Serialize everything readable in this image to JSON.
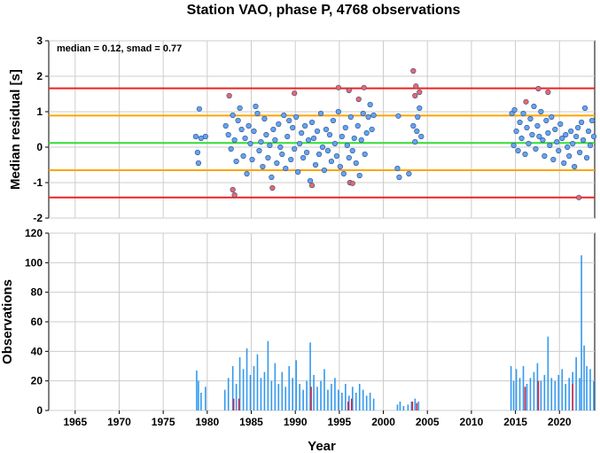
{
  "chart_data": [
    {
      "type": "scatter",
      "title": "Station VAO, phase P, 4768 observations",
      "ylabel": "Median residual [s]",
      "annotation": "median = 0.12, smad = 0.77",
      "xlim": [
        1962,
        2024
      ],
      "ylim": [
        -2,
        3
      ],
      "yticks": [
        "-2",
        "-1",
        "0",
        "1",
        "2",
        "3"
      ],
      "grid": true,
      "reference_lines": [
        {
          "y": 0.12,
          "color": "#33dd33"
        },
        {
          "y": 0.89,
          "color": "#ffa500"
        },
        {
          "y": -0.65,
          "color": "#ffa500"
        },
        {
          "y": 1.66,
          "color": "#ee2222"
        },
        {
          "y": -1.42,
          "color": "#ee2222"
        }
      ],
      "series": [
        {
          "color": "#66a3ee",
          "points": [
            [
              1978.7,
              0.3
            ],
            [
              1978.9,
              -0.15
            ],
            [
              1979.0,
              -0.45
            ],
            [
              1979.1,
              1.08
            ],
            [
              1979.3,
              0.25
            ],
            [
              1979.8,
              0.3
            ],
            [
              1982.1,
              0.6
            ],
            [
              1982.4,
              0.35
            ],
            [
              1982.7,
              -0.05
            ],
            [
              1982.9,
              0.9
            ],
            [
              1983.1,
              0.2
            ],
            [
              1983.3,
              -0.4
            ],
            [
              1983.5,
              0.75
            ],
            [
              1983.7,
              1.1
            ],
            [
              1983.9,
              0.5
            ],
            [
              1984.1,
              -0.25
            ],
            [
              1984.3,
              0.25
            ],
            [
              1984.5,
              -0.75
            ],
            [
              1984.7,
              0.6
            ],
            [
              1984.9,
              0.1
            ],
            [
              1985.1,
              -0.35
            ],
            [
              1985.3,
              0.45
            ],
            [
              1985.5,
              1.15
            ],
            [
              1985.7,
              0.95
            ],
            [
              1985.9,
              -0.1
            ],
            [
              1986.1,
              0.15
            ],
            [
              1986.3,
              -0.55
            ],
            [
              1986.5,
              0.8
            ],
            [
              1986.7,
              0.35
            ],
            [
              1986.9,
              -0.3
            ],
            [
              1987.1,
              0.05
            ],
            [
              1987.3,
              -0.85
            ],
            [
              1987.5,
              0.5
            ],
            [
              1987.7,
              0.2
            ],
            [
              1987.9,
              -0.45
            ],
            [
              1988.1,
              0.65
            ],
            [
              1988.3,
              0.0
            ],
            [
              1988.5,
              -0.2
            ],
            [
              1988.7,
              0.9
            ],
            [
              1988.9,
              -0.6
            ],
            [
              1989.1,
              0.3
            ],
            [
              1989.3,
              0.75
            ],
            [
              1989.5,
              -0.35
            ],
            [
              1989.7,
              0.55
            ],
            [
              1989.9,
              -0.05
            ],
            [
              1990.1,
              0.85
            ],
            [
              1990.3,
              -0.7
            ],
            [
              1990.5,
              0.1
            ],
            [
              1990.7,
              0.4
            ],
            [
              1990.9,
              -0.3
            ],
            [
              1991.1,
              0.6
            ],
            [
              1991.3,
              -0.15
            ],
            [
              1991.5,
              0.2
            ],
            [
              1991.7,
              -0.95
            ],
            [
              1991.9,
              0.7
            ],
            [
              1992.1,
              0.25
            ],
            [
              1992.3,
              -0.5
            ],
            [
              1992.5,
              0.45
            ],
            [
              1992.7,
              -0.2
            ],
            [
              1992.9,
              0.95
            ],
            [
              1993.1,
              0.0
            ],
            [
              1993.3,
              -0.65
            ],
            [
              1993.5,
              0.5
            ],
            [
              1993.7,
              -0.1
            ],
            [
              1993.9,
              0.35
            ],
            [
              1994.1,
              -0.4
            ],
            [
              1994.3,
              0.75
            ],
            [
              1994.5,
              0.1
            ],
            [
              1994.7,
              -0.25
            ],
            [
              1994.9,
              1.0
            ],
            [
              1995.1,
              -0.55
            ],
            [
              1995.3,
              0.3
            ],
            [
              1995.5,
              -0.75
            ],
            [
              1995.7,
              0.55
            ],
            [
              1995.9,
              0.05
            ],
            [
              1996.1,
              -0.3
            ],
            [
              1996.3,
              0.85
            ],
            [
              1996.5,
              -0.1
            ],
            [
              1996.7,
              0.25
            ],
            [
              1996.9,
              -0.45
            ],
            [
              1997.1,
              0.6
            ],
            [
              1997.3,
              -0.8
            ],
            [
              1997.5,
              0.2
            ],
            [
              1997.7,
              0.95
            ],
            [
              1997.9,
              -0.2
            ],
            [
              1998.1,
              0.4
            ],
            [
              1998.3,
              0.85
            ],
            [
              1998.5,
              1.2
            ],
            [
              1998.7,
              0.5
            ],
            [
              1998.9,
              0.9
            ],
            [
              2001.6,
              -0.6
            ],
            [
              2001.7,
              0.88
            ],
            [
              2001.8,
              -0.85
            ],
            [
              2002.9,
              -0.75
            ],
            [
              2003.4,
              0.6
            ],
            [
              2003.6,
              0.15
            ],
            [
              2003.8,
              0.45
            ],
            [
              2003.9,
              0.85
            ],
            [
              2004.1,
              1.1
            ],
            [
              2004.3,
              0.3
            ],
            [
              2014.6,
              0.95
            ],
            [
              2014.8,
              0.05
            ],
            [
              2014.9,
              1.05
            ],
            [
              2015.1,
              0.45
            ],
            [
              2015.3,
              -0.1
            ],
            [
              2015.5,
              0.7
            ],
            [
              2015.7,
              0.25
            ],
            [
              2015.9,
              0.95
            ],
            [
              2016.1,
              -0.2
            ],
            [
              2016.3,
              0.55
            ],
            [
              2016.5,
              0.1
            ],
            [
              2016.7,
              0.8
            ],
            [
              2016.9,
              0.35
            ],
            [
              2017.1,
              1.15
            ],
            [
              2017.3,
              -0.05
            ],
            [
              2017.5,
              0.6
            ],
            [
              2017.7,
              0.3
            ],
            [
              2017.9,
              1.0
            ],
            [
              2018.1,
              0.2
            ],
            [
              2018.3,
              -0.25
            ],
            [
              2018.5,
              0.75
            ],
            [
              2018.7,
              0.4
            ],
            [
              2018.9,
              0.05
            ],
            [
              2019.1,
              0.85
            ],
            [
              2019.3,
              -0.35
            ],
            [
              2019.5,
              0.5
            ],
            [
              2019.7,
              0.15
            ],
            [
              2019.9,
              -0.1
            ],
            [
              2020.1,
              0.65
            ],
            [
              2020.3,
              0.25
            ],
            [
              2020.5,
              -0.45
            ],
            [
              2020.7,
              0.35
            ],
            [
              2020.9,
              0.0
            ],
            [
              2021.1,
              -0.25
            ],
            [
              2021.3,
              0.45
            ],
            [
              2021.5,
              0.1
            ],
            [
              2021.7,
              -0.55
            ],
            [
              2021.9,
              0.3
            ],
            [
              2022.1,
              0.55
            ],
            [
              2022.3,
              -0.15
            ],
            [
              2022.5,
              0.7
            ],
            [
              2022.7,
              0.2
            ],
            [
              2022.9,
              1.1
            ],
            [
              2023.1,
              -0.3
            ],
            [
              2023.3,
              0.45
            ],
            [
              2023.5,
              0.05
            ],
            [
              2023.7,
              0.75
            ],
            [
              2023.9,
              0.3
            ]
          ]
        },
        {
          "color": "#ee6666",
          "points": [
            [
              1982.5,
              1.45
            ],
            [
              1982.9,
              -1.2
            ],
            [
              1983.1,
              -1.35
            ],
            [
              1987.4,
              -1.15
            ],
            [
              1989.9,
              1.52
            ],
            [
              1991.9,
              -1.08
            ],
            [
              1994.9,
              1.68
            ],
            [
              1996.1,
              1.6
            ],
            [
              1996.2,
              -1.0
            ],
            [
              1996.5,
              -1.02
            ],
            [
              1997.2,
              1.35
            ],
            [
              1997.8,
              1.68
            ],
            [
              2003.4,
              2.15
            ],
            [
              2003.6,
              1.45
            ],
            [
              2003.7,
              1.72
            ],
            [
              2004.1,
              1.55
            ],
            [
              2016.2,
              1.28
            ],
            [
              2017.6,
              1.65
            ],
            [
              2018.7,
              1.55
            ],
            [
              2022.2,
              -1.42
            ]
          ]
        }
      ]
    },
    {
      "type": "bar",
      "xlabel": "Year",
      "ylabel": "Observations",
      "xlim": [
        1962,
        2024
      ],
      "ylim": [
        0,
        120
      ],
      "yticks": [
        "0",
        "20",
        "40",
        "60",
        "80",
        "100",
        "120"
      ],
      "xticks": [
        "1965",
        "1970",
        "1975",
        "1980",
        "1985",
        "1990",
        "1995",
        "2000",
        "2005",
        "2010",
        "2015",
        "2020"
      ],
      "grid": true,
      "series": [
        {
          "color": "#3399ee",
          "bars": [
            [
              1978.8,
              27
            ],
            [
              1979.0,
              20
            ],
            [
              1979.3,
              12
            ],
            [
              1979.8,
              16
            ],
            [
              1982.0,
              14
            ],
            [
              1982.4,
              22
            ],
            [
              1982.9,
              30
            ],
            [
              1983.3,
              18
            ],
            [
              1983.7,
              36
            ],
            [
              1984.1,
              28
            ],
            [
              1984.5,
              42
            ],
            [
              1984.9,
              24
            ],
            [
              1985.3,
              30
            ],
            [
              1985.7,
              38
            ],
            [
              1986.1,
              22
            ],
            [
              1986.5,
              26
            ],
            [
              1986.9,
              47
            ],
            [
              1987.3,
              20
            ],
            [
              1987.7,
              32
            ],
            [
              1988.1,
              18
            ],
            [
              1988.5,
              26
            ],
            [
              1988.9,
              16
            ],
            [
              1989.3,
              30
            ],
            [
              1989.7,
              22
            ],
            [
              1990.1,
              34
            ],
            [
              1990.5,
              18
            ],
            [
              1990.9,
              14
            ],
            [
              1991.3,
              20
            ],
            [
              1991.7,
              46
            ],
            [
              1992.1,
              24
            ],
            [
              1992.5,
              16
            ],
            [
              1992.9,
              20
            ],
            [
              1993.3,
              28
            ],
            [
              1993.7,
              14
            ],
            [
              1994.1,
              18
            ],
            [
              1994.5,
              22
            ],
            [
              1994.9,
              14
            ],
            [
              1995.3,
              12
            ],
            [
              1995.7,
              18
            ],
            [
              1996.1,
              10
            ],
            [
              1996.5,
              16
            ],
            [
              1996.9,
              12
            ],
            [
              1997.3,
              18
            ],
            [
              1997.7,
              14
            ],
            [
              1998.1,
              10
            ],
            [
              1998.5,
              12
            ],
            [
              1998.9,
              8
            ],
            [
              2001.6,
              4
            ],
            [
              2001.9,
              6
            ],
            [
              2002.3,
              3
            ],
            [
              2002.8,
              4
            ],
            [
              2003.2,
              6
            ],
            [
              2003.6,
              8
            ],
            [
              2004.0,
              6
            ],
            [
              2014.5,
              30
            ],
            [
              2014.8,
              20
            ],
            [
              2015.1,
              28
            ],
            [
              2015.5,
              22
            ],
            [
              2015.9,
              30
            ],
            [
              2016.3,
              18
            ],
            [
              2016.7,
              22
            ],
            [
              2017.1,
              26
            ],
            [
              2017.5,
              32
            ],
            [
              2017.9,
              20
            ],
            [
              2018.3,
              24
            ],
            [
              2018.7,
              50
            ],
            [
              2019.1,
              22
            ],
            [
              2019.5,
              20
            ],
            [
              2019.9,
              24
            ],
            [
              2020.3,
              28
            ],
            [
              2020.7,
              18
            ],
            [
              2021.1,
              22
            ],
            [
              2021.5,
              26
            ],
            [
              2021.9,
              36
            ],
            [
              2022.3,
              22
            ],
            [
              2022.5,
              105
            ],
            [
              2022.8,
              44
            ],
            [
              2023.1,
              30
            ],
            [
              2023.5,
              28
            ],
            [
              2023.9,
              20
            ]
          ]
        },
        {
          "color": "#cc2244",
          "bars": [
            [
              1983.0,
              8
            ],
            [
              1983.6,
              8
            ],
            [
              1991.8,
              16
            ],
            [
              1996.0,
              6
            ],
            [
              1996.4,
              8
            ],
            [
              2003.3,
              6
            ],
            [
              2003.8,
              5
            ],
            [
              2016.1,
              16
            ],
            [
              2017.6,
              20
            ],
            [
              2021.5,
              18
            ]
          ]
        }
      ]
    }
  ]
}
